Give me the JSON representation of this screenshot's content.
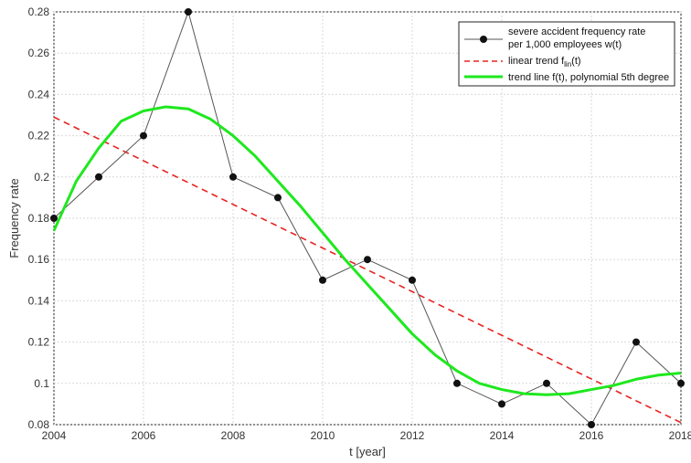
{
  "chart_data": {
    "type": "line",
    "xlabel": "t [year]",
    "ylabel": "Frequency rate",
    "xlim": [
      2004,
      2018
    ],
    "ylim": [
      0.08,
      0.28
    ],
    "xticks": [
      2004,
      2006,
      2008,
      2010,
      2012,
      2014,
      2016,
      2018
    ],
    "yticks": [
      0.08,
      0.1,
      0.12,
      0.14,
      0.16,
      0.18,
      0.2,
      0.22,
      0.24,
      0.26,
      0.28
    ],
    "grid": true,
    "legend_position": "top-right",
    "series": [
      {
        "name_line1": "severe accident frequency rate",
        "name_line2": "per 1,000 employees w(t)",
        "style": "line-markers",
        "color": "#555555",
        "x": [
          2004,
          2005,
          2006,
          2007,
          2008,
          2009,
          2010,
          2011,
          2012,
          2013,
          2014,
          2015,
          2016,
          2017,
          2018
        ],
        "y": [
          0.18,
          0.2,
          0.22,
          0.28,
          0.2,
          0.19,
          0.15,
          0.16,
          0.15,
          0.1,
          0.09,
          0.1,
          0.08,
          0.12,
          0.1
        ]
      },
      {
        "name": "linear trend f",
        "name_sub": "lin",
        "name_suffix": "(t)",
        "style": "dashed",
        "color": "#e8231f",
        "x": [
          2004,
          2018
        ],
        "y": [
          0.229,
          0.081
        ]
      },
      {
        "name": "trend line f(t), polynomial 5th degree",
        "style": "solid-thick",
        "color": "#1ee81e",
        "x": [
          2004,
          2004.5,
          2005,
          2005.5,
          2006,
          2006.5,
          2007,
          2007.5,
          2008,
          2008.5,
          2009,
          2009.5,
          2010,
          2010.5,
          2011,
          2011.5,
          2012,
          2012.5,
          2013,
          2013.5,
          2014,
          2014.5,
          2015,
          2015.5,
          2016,
          2016.5,
          2017,
          2017.5,
          2018
        ],
        "y": [
          0.174,
          0.198,
          0.214,
          0.227,
          0.232,
          0.234,
          0.233,
          0.228,
          0.22,
          0.21,
          0.198,
          0.186,
          0.173,
          0.16,
          0.148,
          0.136,
          0.124,
          0.114,
          0.106,
          0.1,
          0.097,
          0.095,
          0.0945,
          0.095,
          0.097,
          0.099,
          0.102,
          0.104,
          0.105
        ]
      }
    ]
  }
}
